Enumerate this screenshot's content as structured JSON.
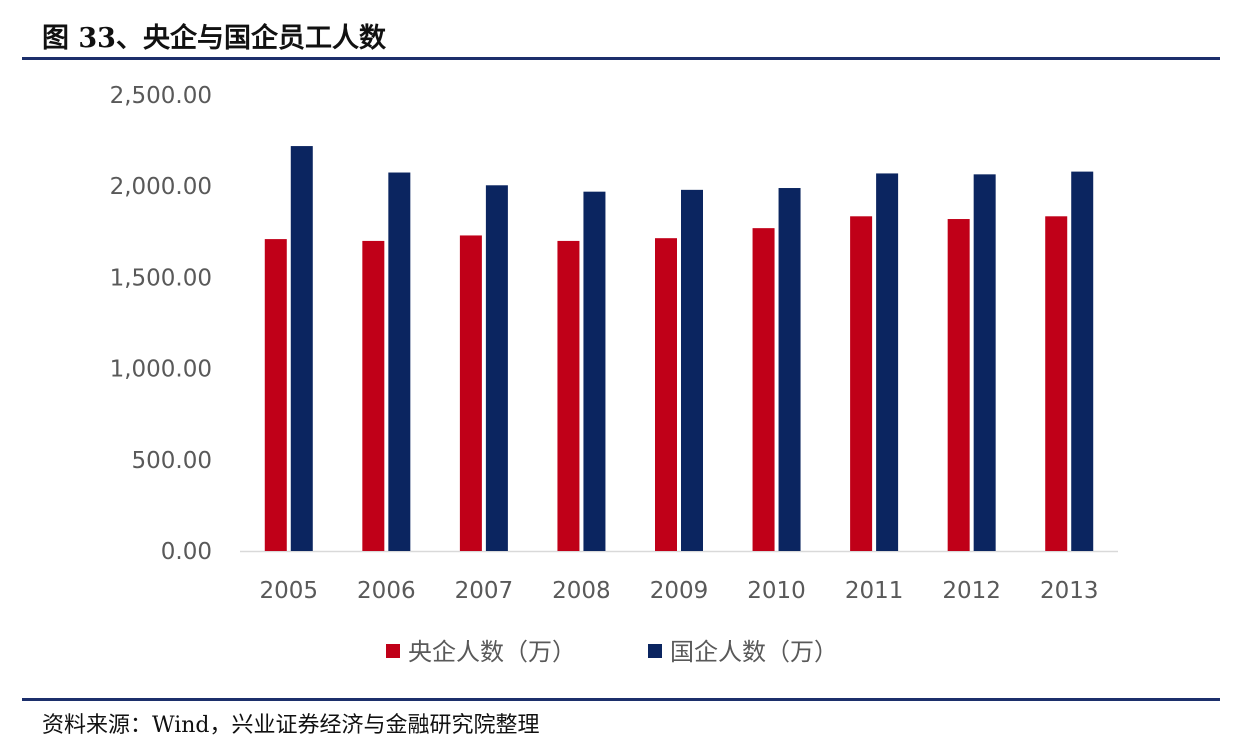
{
  "header": {
    "title": "图 33、央企与国企员工人数"
  },
  "footer": {
    "source": "资料来源：Wind，兴业证券经济与金融研究院整理"
  },
  "chart_data": {
    "type": "bar",
    "title": "",
    "xlabel": "",
    "ylabel": "",
    "categories": [
      "2005",
      "2006",
      "2007",
      "2008",
      "2009",
      "2010",
      "2011",
      "2012",
      "2013"
    ],
    "series": [
      {
        "name": "央企人数（万）",
        "color": "#c00018",
        "values": [
          1710,
          1700,
          1730,
          1700,
          1715,
          1770,
          1835,
          1820,
          1835
        ]
      },
      {
        "name": "国企人数（万）",
        "color": "#0b2560",
        "values": [
          2220,
          2075,
          2005,
          1970,
          1980,
          1990,
          2070,
          2065,
          2080
        ]
      }
    ],
    "ylim": [
      0,
      2500
    ],
    "yticks": [
      "0.00",
      "500.00",
      "1,000.00",
      "1,500.00",
      "2,000.00",
      "2,500.00"
    ],
    "grid": false,
    "legend": "bottom"
  }
}
